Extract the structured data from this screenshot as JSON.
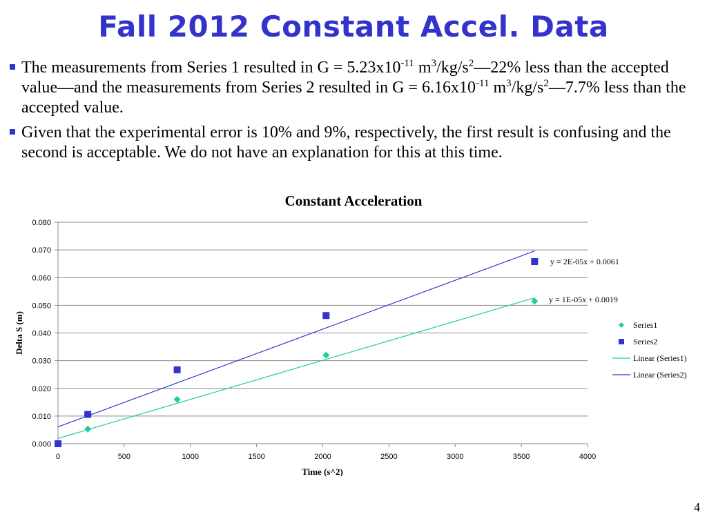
{
  "slide": {
    "title": "Fall 2012 Constant Accel. Data",
    "page_number": "4",
    "bullets": [
      {
        "text": "The measurements from Series 1 resulted in G = 5.23x10-11 m3/kg/s2—22% less than the accepted value—and the measurements from Series 2 resulted in G = 6.16x10-11 m3/kg/s2—7.7% less than the accepted value.",
        "parts": [
          {
            "t": "The measurements from Series 1 resulted in G = 5.23x10"
          },
          {
            "t": "-11",
            "sup": true
          },
          {
            "t": " m"
          },
          {
            "t": "3",
            "sup": true
          },
          {
            "t": "/kg/s"
          },
          {
            "t": "2",
            "sup": true
          },
          {
            "t": "—22% less than the accepted value—and the measurements from Series 2 resulted in G = 6.16x10"
          },
          {
            "t": "-11",
            "sup": true
          },
          {
            "t": " m"
          },
          {
            "t": "3",
            "sup": true
          },
          {
            "t": "/kg/s"
          },
          {
            "t": "2",
            "sup": true
          },
          {
            "t": "—7.7% less than the accepted value."
          }
        ]
      },
      {
        "text": "Given that the experimental error is 10% and 9%, respectively, the first result is confusing and the second is acceptable. We do not have an explanation for this at this time.",
        "parts": [
          {
            "t": "Given that the experimental error is 10% and 9%, respectively, the first result is confusing and the second is acceptable. We do not have an explanation for this at this time."
          }
        ]
      }
    ]
  },
  "colors": {
    "title": "#3333cc",
    "bullet_marker": "#3333cc",
    "series1": "#22cc99",
    "series2": "#3333cc",
    "grid": "#888888"
  },
  "chart_data": {
    "type": "scatter",
    "title": "Constant Acceleration",
    "xlabel": "Time (s^2)",
    "ylabel": "Delta S (m)",
    "xlim": [
      0,
      4000
    ],
    "ylim": [
      0,
      0.08
    ],
    "xticks": [
      0,
      500,
      1000,
      1500,
      2000,
      2500,
      3000,
      3500,
      4000
    ],
    "xtick_labels": [
      "0",
      "500",
      "1000",
      "1500",
      "2000",
      "2500",
      "3000",
      "3500",
      "4000"
    ],
    "yticks": [
      0,
      0.01,
      0.02,
      0.03,
      0.04,
      0.05,
      0.06,
      0.07,
      0.08
    ],
    "ytick_labels": [
      "0.000",
      "0.010",
      "0.020",
      "0.030",
      "0.040",
      "0.050",
      "0.060",
      "0.070",
      "0.080"
    ],
    "grid": "horizontal",
    "legend_position": "right",
    "series": [
      {
        "name": "Series1",
        "marker": "diamond",
        "color": "#22cc99",
        "x": [
          225,
          900,
          2025,
          3600
        ],
        "y": [
          0.0053,
          0.016,
          0.032,
          0.0515
        ]
      },
      {
        "name": "Series2",
        "marker": "square",
        "color": "#3333cc",
        "x": [
          0,
          225,
          900,
          2025,
          3600
        ],
        "y": [
          0.0,
          0.0106,
          0.0267,
          0.0463,
          0.0658
        ]
      }
    ],
    "trendlines": [
      {
        "name": "Linear (Series1)",
        "color": "#22cc99",
        "x": [
          0,
          3600
        ],
        "y": [
          0.0019,
          0.0527
        ],
        "equation": "y = 1E-05x + 0.0019"
      },
      {
        "name": "Linear (Series2)",
        "color": "#3333cc",
        "x": [
          0,
          3600
        ],
        "y": [
          0.0061,
          0.0696
        ],
        "equation": "y = 2E-05x + 0.0061"
      }
    ],
    "legend": [
      "Series1",
      "Series2",
      "Linear (Series1)",
      "Linear (Series2)"
    ]
  }
}
